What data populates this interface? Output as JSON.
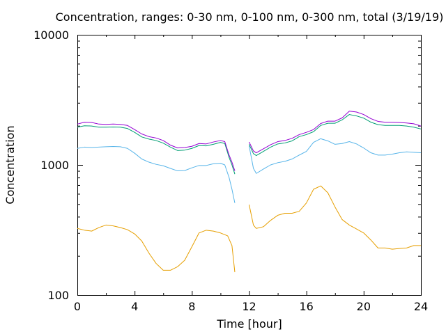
{
  "chart_data": {
    "type": "line",
    "title": "Concentration, ranges: 0-30 nm, 0-100 nm, 0-300 nm, total (3/19/19)",
    "xlabel": "Time [hour]",
    "ylabel": "Concentration",
    "xlim": [
      0,
      24
    ],
    "ylim": [
      100,
      10000
    ],
    "yscale": "log",
    "grid": false,
    "legend": "none",
    "x_ticks": [
      0,
      4,
      8,
      12,
      16,
      20,
      24
    ],
    "x_tick_labels": [
      "0",
      "4",
      "8",
      "12",
      "16",
      "20",
      "24"
    ],
    "y_ticks": [
      100,
      1000,
      10000
    ],
    "y_tick_labels": [
      "100",
      "1000",
      "10000"
    ],
    "series": [
      {
        "color": "#e69f00",
        "segments": [
          [
            [
              0,
              325
            ],
            [
              0.5,
              315
            ],
            [
              1,
              310
            ],
            [
              1.5,
              330
            ],
            [
              2,
              345
            ],
            [
              2.5,
              340
            ],
            [
              3,
              330
            ],
            [
              3.5,
              318
            ],
            [
              4,
              295
            ],
            [
              4.5,
              260
            ],
            [
              5,
              210
            ],
            [
              5.5,
              175
            ],
            [
              6,
              155
            ],
            [
              6.5,
              155
            ],
            [
              7,
              165
            ],
            [
              7.5,
              185
            ],
            [
              8,
              235
            ],
            [
              8.5,
              300
            ],
            [
              9,
              315
            ],
            [
              9.5,
              310
            ],
            [
              10,
              300
            ],
            [
              10.5,
              285
            ],
            [
              10.8,
              240
            ],
            [
              11,
              150
            ]
          ],
          [
            [
              12,
              495
            ],
            [
              12.3,
              345
            ],
            [
              12.5,
              325
            ],
            [
              13,
              335
            ],
            [
              13.5,
              375
            ],
            [
              14,
              410
            ],
            [
              14.5,
              425
            ],
            [
              15,
              425
            ],
            [
              15.5,
              440
            ],
            [
              16,
              510
            ],
            [
              16.5,
              650
            ],
            [
              17,
              690
            ],
            [
              17.5,
              610
            ],
            [
              18,
              475
            ],
            [
              18.5,
              380
            ],
            [
              19,
              345
            ],
            [
              19.5,
              322
            ],
            [
              20,
              300
            ],
            [
              20.5,
              265
            ],
            [
              21,
              230
            ],
            [
              21.5,
              230
            ],
            [
              22,
              225
            ],
            [
              22.5,
              228
            ],
            [
              23,
              230
            ],
            [
              23.5,
              240
            ],
            [
              24,
              240
            ]
          ]
        ]
      },
      {
        "color": "#56b4e9",
        "segments": [
          [
            [
              0,
              1340
            ],
            [
              0.5,
              1370
            ],
            [
              1,
              1360
            ],
            [
              1.5,
              1370
            ],
            [
              2,
              1380
            ],
            [
              2.5,
              1385
            ],
            [
              3,
              1380
            ],
            [
              3.5,
              1340
            ],
            [
              4,
              1230
            ],
            [
              4.5,
              1110
            ],
            [
              5,
              1050
            ],
            [
              5.5,
              1010
            ],
            [
              6,
              985
            ],
            [
              6.5,
              940
            ],
            [
              7,
              900
            ],
            [
              7.5,
              905
            ],
            [
              8,
              950
            ],
            [
              8.5,
              990
            ],
            [
              9,
              990
            ],
            [
              9.5,
              1020
            ],
            [
              10,
              1030
            ],
            [
              10.3,
              1000
            ],
            [
              10.6,
              800
            ],
            [
              10.8,
              650
            ],
            [
              11,
              510
            ]
          ],
          [
            [
              12,
              1400
            ],
            [
              12.3,
              940
            ],
            [
              12.5,
              860
            ],
            [
              13,
              930
            ],
            [
              13.5,
              1000
            ],
            [
              14,
              1040
            ],
            [
              14.5,
              1065
            ],
            [
              15,
              1110
            ],
            [
              15.5,
              1190
            ],
            [
              16,
              1270
            ],
            [
              16.5,
              1490
            ],
            [
              17,
              1590
            ],
            [
              17.5,
              1530
            ],
            [
              18,
              1440
            ],
            [
              18.5,
              1460
            ],
            [
              19,
              1510
            ],
            [
              19.5,
              1450
            ],
            [
              20,
              1350
            ],
            [
              20.5,
              1240
            ],
            [
              21,
              1190
            ],
            [
              21.5,
              1190
            ],
            [
              22,
              1210
            ],
            [
              22.5,
              1240
            ],
            [
              23,
              1260
            ],
            [
              23.5,
              1250
            ],
            [
              24,
              1240
            ]
          ]
        ]
      },
      {
        "color": "#009e73",
        "segments": [
          [
            [
              0,
              1950
            ],
            [
              0.5,
              2000
            ],
            [
              1,
              1990
            ],
            [
              1.5,
              1950
            ],
            [
              2,
              1950
            ],
            [
              2.5,
              1955
            ],
            [
              3,
              1950
            ],
            [
              3.5,
              1905
            ],
            [
              4,
              1780
            ],
            [
              4.5,
              1640
            ],
            [
              5,
              1580
            ],
            [
              5.5,
              1540
            ],
            [
              6,
              1470
            ],
            [
              6.5,
              1370
            ],
            [
              7,
              1290
            ],
            [
              7.5,
              1300
            ],
            [
              8,
              1340
            ],
            [
              8.5,
              1410
            ],
            [
              9,
              1400
            ],
            [
              9.5,
              1440
            ],
            [
              10,
              1490
            ],
            [
              10.3,
              1460
            ],
            [
              10.6,
              1140
            ],
            [
              10.8,
              1000
            ],
            [
              11,
              850
            ]
          ],
          [
            [
              12,
              1440
            ],
            [
              12.3,
              1220
            ],
            [
              12.5,
              1180
            ],
            [
              13,
              1270
            ],
            [
              13.5,
              1370
            ],
            [
              14,
              1450
            ],
            [
              14.5,
              1475
            ],
            [
              15,
              1530
            ],
            [
              15.5,
              1650
            ],
            [
              16,
              1710
            ],
            [
              16.5,
              1800
            ],
            [
              17,
              2010
            ],
            [
              17.5,
              2090
            ],
            [
              18,
              2090
            ],
            [
              18.5,
              2220
            ],
            [
              19,
              2440
            ],
            [
              19.5,
              2380
            ],
            [
              20,
              2290
            ],
            [
              20.5,
              2130
            ],
            [
              21,
              2040
            ],
            [
              21.5,
              2010
            ],
            [
              22,
              2010
            ],
            [
              22.5,
              2010
            ],
            [
              23,
              1990
            ],
            [
              23.5,
              1950
            ],
            [
              24,
              1890
            ]
          ]
        ]
      },
      {
        "color": "#9400d3",
        "segments": [
          [
            [
              0,
              2060
            ],
            [
              0.5,
              2130
            ],
            [
              1,
              2120
            ],
            [
              1.5,
              2060
            ],
            [
              2,
              2050
            ],
            [
              2.5,
              2060
            ],
            [
              3,
              2050
            ],
            [
              3.5,
              2010
            ],
            [
              4,
              1870
            ],
            [
              4.5,
              1730
            ],
            [
              5,
              1650
            ],
            [
              5.5,
              1610
            ],
            [
              6,
              1540
            ],
            [
              6.5,
              1420
            ],
            [
              7,
              1350
            ],
            [
              7.5,
              1360
            ],
            [
              8,
              1390
            ],
            [
              8.5,
              1460
            ],
            [
              9,
              1450
            ],
            [
              9.5,
              1500
            ],
            [
              10,
              1540
            ],
            [
              10.3,
              1510
            ],
            [
              10.6,
              1190
            ],
            [
              10.8,
              1050
            ],
            [
              11,
              900
            ]
          ],
          [
            [
              12,
              1500
            ],
            [
              12.3,
              1280
            ],
            [
              12.5,
              1240
            ],
            [
              13,
              1330
            ],
            [
              13.5,
              1430
            ],
            [
              14,
              1510
            ],
            [
              14.5,
              1540
            ],
            [
              15,
              1600
            ],
            [
              15.5,
              1710
            ],
            [
              16,
              1780
            ],
            [
              16.5,
              1870
            ],
            [
              17,
              2080
            ],
            [
              17.5,
              2170
            ],
            [
              18,
              2170
            ],
            [
              18.5,
              2300
            ],
            [
              19,
              2590
            ],
            [
              19.5,
              2550
            ],
            [
              20,
              2440
            ],
            [
              20.5,
              2270
            ],
            [
              21,
              2160
            ],
            [
              21.5,
              2130
            ],
            [
              22,
              2130
            ],
            [
              22.5,
              2120
            ],
            [
              23,
              2100
            ],
            [
              23.5,
              2070
            ],
            [
              24,
              1990
            ]
          ]
        ]
      }
    ]
  }
}
